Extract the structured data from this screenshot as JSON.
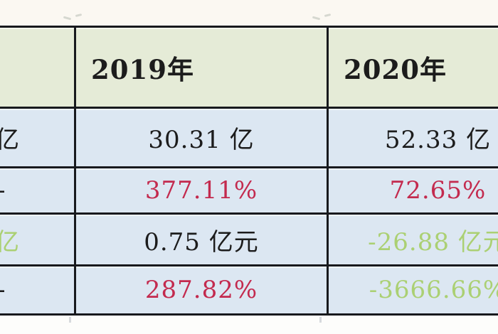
{
  "colors": {
    "border": "#17191d",
    "header_bg": "#e5ebd7",
    "row_bg": "#dce7f2",
    "ink": "#1c1c1c",
    "up_red": "#c32a4e",
    "down_green": "#abd073",
    "top_strip_bg": "#fbf8f2",
    "remnant": "#b9beb6"
  },
  "table": {
    "header": {
      "col_prev": "",
      "col_2019": "2019年",
      "col_2020": "2020年"
    },
    "rows": [
      {
        "prev": "亿",
        "v2019": "30.31 亿",
        "v2020": "52.33 亿"
      },
      {
        "prev": "-",
        "v2019": "377.11%",
        "v2020": "72.65%"
      },
      {
        "prev": "亿",
        "v2019": "0.75 亿元",
        "v2020": "-26.88 亿元"
      },
      {
        "prev": "-",
        "v2019": "287.82%",
        "v2020": "-3666.66%"
      }
    ]
  },
  "chart_data": {
    "type": "table",
    "columns": [
      "",
      "2019年",
      "2020年"
    ],
    "rows": [
      [
        "亿",
        "30.31 亿",
        "52.33 亿"
      ],
      [
        "-",
        "377.11%",
        "72.65%"
      ],
      [
        "亿",
        "0.75 亿元",
        "-26.88 亿元"
      ],
      [
        "-",
        "287.82%",
        "-3666.66%"
      ]
    ],
    "cell_text_colors": [
      [
        "#1c1c1c",
        "#1c1c1c",
        "#1c1c1c"
      ],
      [
        "#1c1c1c",
        "#c32a4e",
        "#c32a4e"
      ],
      [
        "#abd073",
        "#1c1c1c",
        "#abd073"
      ],
      [
        "#1c1c1c",
        "#c32a4e",
        "#abd073"
      ]
    ]
  }
}
